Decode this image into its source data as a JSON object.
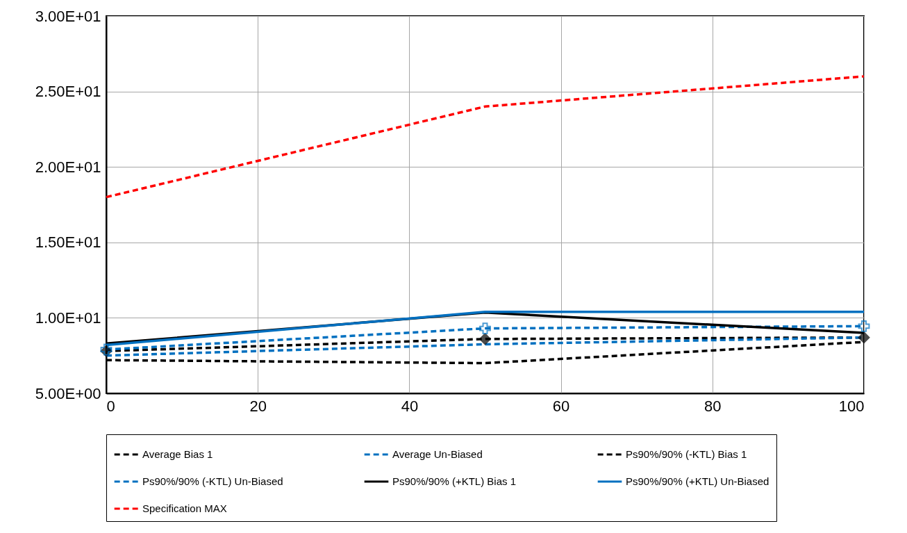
{
  "chart_data": {
    "type": "line",
    "x": [
      0,
      50,
      100
    ],
    "series": [
      {
        "name": "Average Bias 1",
        "color": "#000000",
        "values": [
          7.8,
          8.6,
          8.7
        ],
        "marker": "diamond",
        "line_style": "dashed"
      },
      {
        "name": "Average Un-Biased",
        "color": "#0070c0",
        "values": [
          7.9,
          9.3,
          9.45
        ],
        "marker": "cross",
        "line_style": "dashed"
      },
      {
        "name": "Ps90%/90% (-KTL) Bias 1",
        "color": "#000000",
        "values": [
          7.2,
          7.0,
          8.4
        ],
        "line_style": "dashed"
      },
      {
        "name": "Ps90%/90% (-KTL) Un-Biased",
        "color": "#0070c0",
        "values": [
          7.5,
          8.25,
          8.7
        ],
        "line_style": "dashed"
      },
      {
        "name": "Ps90%/90% (+KTL) Bias 1",
        "color": "#000000",
        "values": [
          8.3,
          10.35,
          9.0
        ],
        "line_style": "solid"
      },
      {
        "name": "Ps90%/90% (+KTL) Un-Biased",
        "color": "#0070c0",
        "values": [
          8.2,
          10.4,
          10.4
        ],
        "line_style": "solid"
      },
      {
        "name": "Specification MAX",
        "color": "#ff0000",
        "values": [
          18,
          24,
          26
        ],
        "line_style": "dashed"
      }
    ],
    "xlim": [
      0,
      100
    ],
    "xticks": [
      0,
      20,
      40,
      60,
      80,
      100
    ],
    "ylim": [
      5,
      30
    ],
    "yticks": [
      {
        "value": 5,
        "label": "5.00E+00"
      },
      {
        "value": 10,
        "label": "1.00E+01"
      },
      {
        "value": 15,
        "label": "1.50E+01"
      },
      {
        "value": 20,
        "label": "2.00E+01"
      },
      {
        "value": 25,
        "label": "2.50E+01"
      },
      {
        "value": 30,
        "label": "3.00E+01"
      }
    ],
    "grid": true,
    "legend": "bottom"
  }
}
